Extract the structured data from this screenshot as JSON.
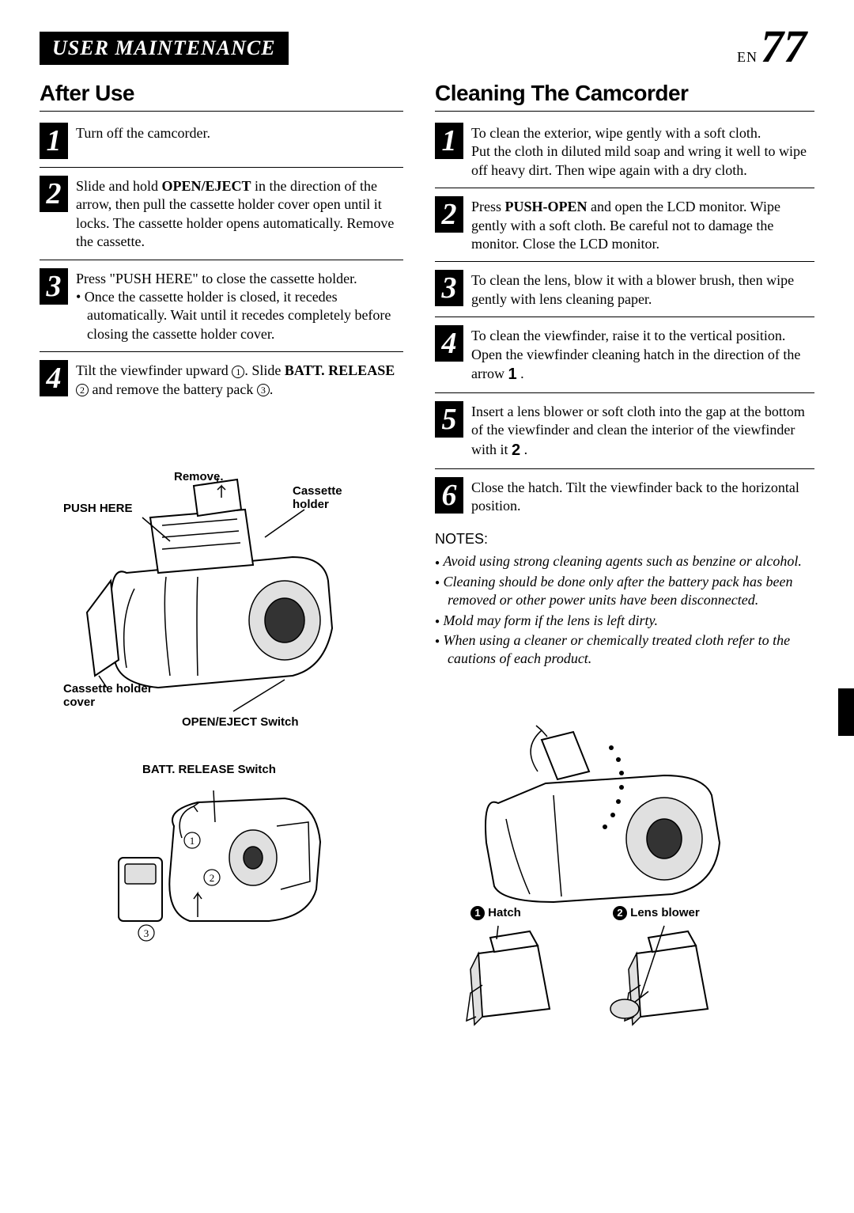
{
  "header": {
    "title": "USER MAINTENANCE",
    "page_prefix": "EN",
    "page_number": "77"
  },
  "left": {
    "title": "After Use",
    "steps": [
      {
        "n": "1",
        "text": "Turn off the camcorder."
      },
      {
        "n": "2",
        "text": "Slide and hold <b>OPEN/EJECT</b> in the direction of the arrow, then pull the cassette holder cover open until it locks. The cassette holder opens automatically. Remove the cassette."
      },
      {
        "n": "3",
        "text": "Press \"PUSH HERE\" to close the cassette holder.",
        "bullet": "Once the cassette holder is closed, it recedes automatically. Wait until it recedes completely before closing the cassette holder cover."
      },
      {
        "n": "4",
        "text": "Tilt the viewfinder upward <span class='circ-num'>1</span>. Slide <b>BATT. RELEASE</b> <span class='circ-num'>2</span> and remove the battery pack <span class='circ-num'>3</span>."
      }
    ],
    "labels": {
      "remove": "Remove.",
      "push_here": "PUSH HERE",
      "cassette_holder": "Cassette holder",
      "cassette_cover": "Cassette holder cover",
      "open_eject": "OPEN/EJECT Switch",
      "batt_release": "BATT. RELEASE Switch"
    }
  },
  "right": {
    "title": "Cleaning The Camcorder",
    "steps": [
      {
        "n": "1",
        "text": "To clean the exterior, wipe gently with a soft cloth.<br>Put the cloth in diluted mild soap and wring it well to wipe off heavy dirt. Then wipe again with a dry cloth."
      },
      {
        "n": "2",
        "text": "Press <b>PUSH-OPEN</b> and open the LCD monitor. Wipe gently with a soft cloth.  Be careful not to damage the monitor.  Close the LCD monitor."
      },
      {
        "n": "3",
        "text": "To clean the lens, blow it with a blower brush, then wipe gently with lens cleaning paper."
      },
      {
        "n": "4",
        "text": "To clean the viewfinder, raise it to the vertical position. Open the viewfinder cleaning hatch in the direction of the arrow <span class='big-num-inline'>1</span> ."
      },
      {
        "n": "5",
        "text": "Insert a lens blower or soft cloth into the gap at the bottom of the viewfinder and clean the interior of the viewfinder with it <span class='big-num-inline'>2</span> ."
      },
      {
        "n": "6",
        "text": "Close the hatch. Tilt the viewfinder back to the horizontal position."
      }
    ],
    "notes_title": "NOTES:",
    "notes": [
      "Avoid using strong cleaning agents such as benzine or alcohol.",
      "Cleaning should be done only after the battery pack has been removed or other power units have been disconnected.",
      "Mold may form if the lens is left dirty.",
      "When using a cleaner or chemically treated cloth refer to the cautions of each product."
    ],
    "labels": {
      "hatch": "Hatch",
      "lens_blower": "Lens blower"
    }
  }
}
